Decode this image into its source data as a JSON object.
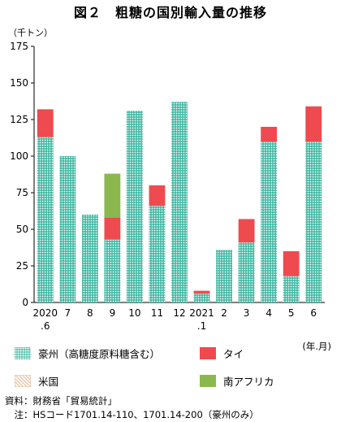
{
  "title": "図２　粗糖の国別輸入量の推移",
  "chart_data": {
    "type": "bar",
    "stacked": true,
    "ylabel": "（千トン）",
    "xunit": "(年.月)",
    "ylim": [
      0,
      175
    ],
    "yticks": [
      0,
      25,
      50,
      75,
      100,
      125,
      150,
      175
    ],
    "grid": false,
    "legend_position": "bottom",
    "categories": [
      [
        "2020",
        ".6"
      ],
      [
        "7"
      ],
      [
        "8"
      ],
      [
        "9"
      ],
      [
        "10"
      ],
      [
        "11"
      ],
      [
        "12"
      ],
      [
        "2021",
        ".1"
      ],
      [
        "2"
      ],
      [
        "3"
      ],
      [
        "4"
      ],
      [
        "5"
      ],
      [
        "6"
      ]
    ],
    "series": [
      {
        "name": "豪州（高糖度原料糖含む）",
        "color": "#44b9a4",
        "pattern": "dots",
        "values": [
          113,
          100,
          60,
          43,
          131,
          66,
          137,
          6,
          36,
          41,
          110,
          18,
          110
        ]
      },
      {
        "name": "タイ",
        "color": "#ee4a4f",
        "pattern": "solid",
        "values": [
          19,
          0,
          0,
          15,
          0,
          14,
          0,
          2,
          0,
          16,
          10,
          17,
          24
        ]
      },
      {
        "name": "米国",
        "color": "#e8b89a",
        "pattern": "hatch",
        "values": [
          0,
          0,
          0,
          0,
          0,
          0,
          0,
          0,
          0,
          0,
          0,
          0,
          0
        ]
      },
      {
        "name": "南アフリカ",
        "color": "#8ab84e",
        "pattern": "solid",
        "values": [
          0,
          0,
          0,
          30,
          0,
          0,
          0,
          0,
          0,
          0,
          0,
          0,
          0
        ]
      }
    ]
  },
  "notes": {
    "source": "資料：財務省「貿易統計」",
    "note": "　注：HSコード1701.14-110、1701.14-200（豪州のみ）"
  }
}
